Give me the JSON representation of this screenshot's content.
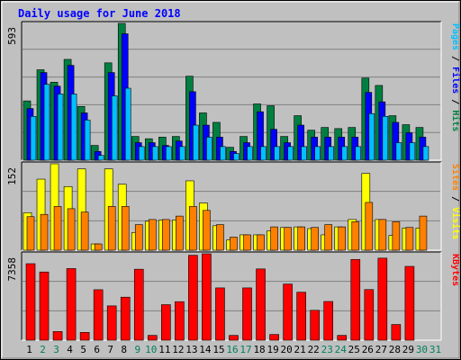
{
  "chart_data": {
    "type": "bar",
    "title": "Daily usage for June 2018",
    "colors": {
      "hits": "#008040",
      "files": "#0000ff",
      "pages": "#00c0ff",
      "visits": "#ffff00",
      "sites": "#ff8000",
      "kbytes": "#ff0000",
      "weekend_day_label": "#00805c",
      "weekday_label": "#000000",
      "title": "#0000ff",
      "background": "#c0c0c0"
    },
    "days": [
      "1",
      "2",
      "3",
      "4",
      "5",
      "6",
      "7",
      "8",
      "9",
      "10",
      "11",
      "12",
      "13",
      "14",
      "15",
      "16",
      "17",
      "18",
      "19",
      "20",
      "21",
      "22",
      "23",
      "24",
      "25",
      "26",
      "27",
      "28",
      "29",
      "30",
      "31"
    ],
    "weekend_days": [
      2,
      3,
      9,
      10,
      16,
      17,
      23,
      24,
      30,
      31
    ],
    "panels": [
      {
        "id": "hits_files_pages",
        "max_label": "593",
        "ymax": 593,
        "right_labels": [
          {
            "text": "Pages",
            "color": "#00c0ff"
          },
          {
            "text": " / ",
            "color": "#000000"
          },
          {
            "text": "Files",
            "color": "#0000ff"
          },
          {
            "text": " / ",
            "color": "#000000"
          },
          {
            "text": "Hits",
            "color": "#008040"
          }
        ],
        "series": [
          {
            "name": "Hits",
            "color": "#008040",
            "values": [
              257,
              392,
              338,
              437,
              233,
              64,
              422,
              593,
              103,
              93,
              100,
              103,
              364,
              205,
              164,
              56,
              103,
              244,
              236,
              103,
              193,
              130,
              142,
              137,
              142,
              356,
              324,
              193,
              154,
              142,
              0
            ]
          },
          {
            "name": "Files",
            "color": "#0000ff",
            "values": [
              224,
              380,
              321,
              411,
              205,
              38,
              380,
              548,
              76,
              76,
              64,
              83,
              297,
              152,
              100,
              38,
              76,
              210,
              134,
              76,
              152,
              100,
              100,
              100,
              100,
              294,
              253,
              164,
              119,
              100,
              0
            ]
          },
          {
            "name": "Pages",
            "color": "#00c0ff",
            "values": [
              190,
              329,
              287,
              287,
              174,
              21,
              279,
              312,
              59,
              59,
              59,
              59,
              152,
              100,
              59,
              29,
              59,
              59,
              59,
              59,
              59,
              59,
              59,
              59,
              59,
              202,
              190,
              76,
              76,
              59,
              0
            ]
          }
        ]
      },
      {
        "id": "visits_sites",
        "max_label": "152",
        "ymax": 152,
        "right_labels": [
          {
            "text": "Sites",
            "color": "#ff8000"
          },
          {
            "text": " / ",
            "color": "#000000"
          },
          {
            "text": "Visits",
            "color": "#ffff00"
          }
        ],
        "series": [
          {
            "name": "Visits",
            "color": "#ffff00",
            "values": [
              66,
              125,
              152,
              112,
              143,
              11,
              143,
              116,
              31,
              51,
              53,
              53,
              122,
              83,
              43,
              18,
              27,
              27,
              34,
              40,
              41,
              38,
              27,
              41,
              54,
              135,
              54,
              26,
              39,
              39,
              0
            ]
          },
          {
            "name": "Sites",
            "color": "#ff8000",
            "values": [
              59,
              63,
              77,
              73,
              67,
              11,
              77,
              77,
              45,
              54,
              54,
              60,
              77,
              70,
              45,
              23,
              27,
              27,
              41,
              40,
              41,
              40,
              45,
              41,
              50,
              84,
              54,
              50,
              40,
              60,
              0
            ]
          }
        ]
      },
      {
        "id": "kbytes",
        "max_label": "7358",
        "ymax": 7358,
        "right_labels": [
          {
            "text": "KBytes",
            "color": "#ff0000"
          }
        ],
        "series": [
          {
            "name": "KBytes",
            "color": "#ff0000",
            "values": [
              6515,
              5809,
              738,
              6101,
              665,
              4299,
              2922,
              3664,
              6043,
              410,
              3026,
              3280,
              7232,
              7358,
              4453,
              407,
              4453,
              6067,
              486,
              4781,
              4086,
              2544,
              3296,
              410,
              6878,
              4311,
              6989,
              1337,
              6286,
              0,
              0
            ]
          }
        ]
      }
    ]
  }
}
